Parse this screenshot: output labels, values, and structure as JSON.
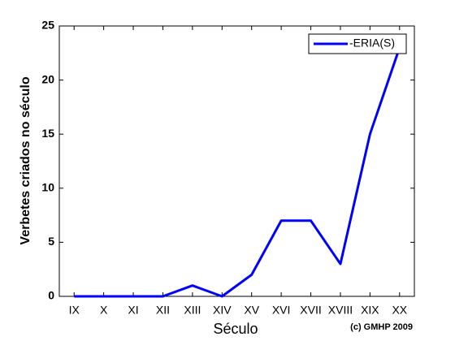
{
  "chart_data": {
    "type": "line",
    "ylabel": "Verbetes criados no século",
    "xlabel": "Século",
    "annotation": "(c) GMHP 2009",
    "categories": [
      "IX",
      "X",
      "XI",
      "XII",
      "XIII",
      "XIV",
      "XV",
      "XVI",
      "XVII",
      "XVIII",
      "XIX",
      "XX"
    ],
    "series": [
      {
        "name": "-ERIA(S)",
        "color": "#0000ff",
        "values": [
          0,
          0,
          0,
          0,
          1,
          0,
          2,
          7,
          7,
          3,
          15,
          23
        ]
      }
    ],
    "ylim": [
      0,
      25
    ],
    "yticks": [
      0,
      5,
      10,
      15,
      20,
      25
    ],
    "legend": "upper right"
  }
}
